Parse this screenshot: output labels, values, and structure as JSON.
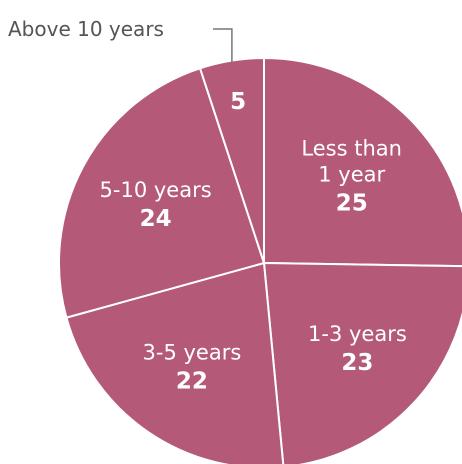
{
  "chart_data": {
    "type": "pie",
    "title": "",
    "slices": [
      {
        "label": "Less than 1 year",
        "label_lines": [
          "Less than",
          "1 year"
        ],
        "value": 25
      },
      {
        "label": "1-3 years",
        "label_lines": [
          "1-3 years"
        ],
        "value": 23
      },
      {
        "label": "3-5 years",
        "label_lines": [
          "3-5 years"
        ],
        "value": 22
      },
      {
        "label": "5-10 years",
        "label_lines": [
          "5-10 years"
        ],
        "value": 24
      },
      {
        "label": "Above 10 years",
        "label_lines": [],
        "value": 5,
        "callout": "Above 10 years"
      }
    ],
    "colors": {
      "slice": "#b45a78",
      "separator": "#ffffff",
      "leader": "#777777"
    },
    "start_direction": "top, clockwise"
  }
}
